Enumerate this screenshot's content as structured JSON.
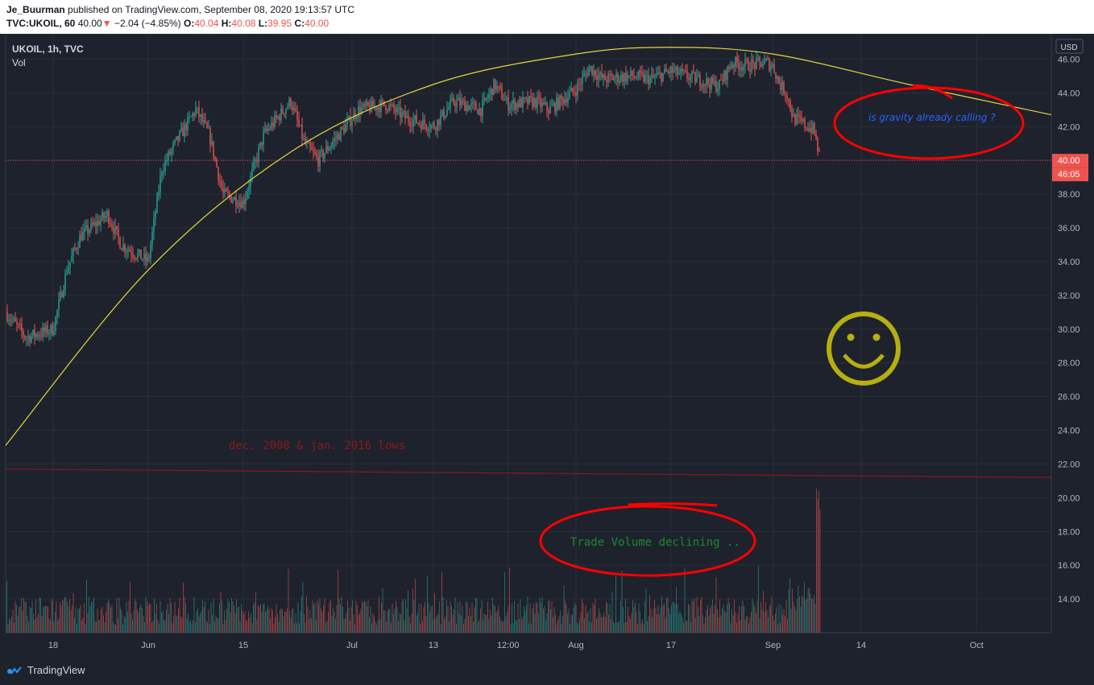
{
  "header": {
    "author": "Je_Buurman",
    "published": "published on TradingView.com, September 08, 2020 19:13:57 UTC",
    "symbol_line": "TVC:UKOIL, 60",
    "last": "40.00",
    "change": "−2.04 (−4.85%)",
    "o_label": "O:",
    "o": "40.04",
    "h_label": "H:",
    "h": "40.08",
    "l_label": "L:",
    "l": "39.95",
    "c_label": "C:",
    "c": "40.00"
  },
  "legend": {
    "symbol": "UKOIL, 1h, TVC",
    "volume": "Vol"
  },
  "annotations": {
    "gravity": "is gravity already calling ?",
    "lows": "dec. 2008 & jan. 2016 lows",
    "volume": "Trade Volume declining .."
  },
  "price_scale": {
    "currency": "USD",
    "last_price": "40.00",
    "countdown": "46:05"
  },
  "footer": {
    "brand": "TradingView"
  },
  "colors": {
    "background": "#1e222d",
    "grid": "#2a2e39",
    "up": "#26a69a",
    "down": "#ef5350",
    "arc": "#e5d640",
    "red_annotation": "#ff0000",
    "lows_line": "#8b1a1a",
    "smiley": "#b5b00f",
    "gravity_text": "#2962ff",
    "volume_text": "#1b8a2a"
  },
  "chart_data": {
    "type": "candlestick",
    "symbol": "UKOIL",
    "interval": "1h",
    "x_ticks": [
      "18",
      "Jun",
      "15",
      "Jul",
      "13",
      "12:00",
      "Aug",
      "17",
      "Sep",
      "14",
      "Oct"
    ],
    "y_ticks": [
      14,
      16,
      18,
      20,
      22,
      24,
      26,
      28,
      30,
      32,
      34,
      36,
      38,
      40,
      42,
      44,
      46
    ],
    "y_tick_labels": [
      "14.00",
      "16.00",
      "18.00",
      "20.00",
      "22.00",
      "24.00",
      "26.00",
      "28.00",
      "30.00",
      "32.00",
      "34.00",
      "36.00",
      "38.00",
      "40.00",
      "42.00",
      "44.00",
      "46.00"
    ],
    "ylim": [
      12.0,
      47.5
    ],
    "grid": true,
    "last_price": 40.0,
    "price_path": [
      {
        "date": "2020-05-11",
        "close": 31.0
      },
      {
        "date": "2020-05-14",
        "close": 29.5
      },
      {
        "date": "2020-05-18",
        "close": 30.0
      },
      {
        "date": "2020-05-20",
        "close": 33.5
      },
      {
        "date": "2020-05-22",
        "close": 35.5
      },
      {
        "date": "2020-05-26",
        "close": 36.8
      },
      {
        "date": "2020-05-28",
        "close": 35.0
      },
      {
        "date": "2020-06-01",
        "close": 34.0
      },
      {
        "date": "2020-06-03",
        "close": 39.5
      },
      {
        "date": "2020-06-05",
        "close": 41.0
      },
      {
        "date": "2020-06-08",
        "close": 43.0
      },
      {
        "date": "2020-06-10",
        "close": 41.5
      },
      {
        "date": "2020-06-12",
        "close": 38.0
      },
      {
        "date": "2020-06-15",
        "close": 37.5
      },
      {
        "date": "2020-06-18",
        "close": 41.5
      },
      {
        "date": "2020-06-22",
        "close": 43.5
      },
      {
        "date": "2020-06-24",
        "close": 41.0
      },
      {
        "date": "2020-06-26",
        "close": 40.0
      },
      {
        "date": "2020-06-29",
        "close": 41.5
      },
      {
        "date": "2020-07-02",
        "close": 43.0
      },
      {
        "date": "2020-07-06",
        "close": 43.3
      },
      {
        "date": "2020-07-09",
        "close": 42.5
      },
      {
        "date": "2020-07-13",
        "close": 42.0
      },
      {
        "date": "2020-07-16",
        "close": 43.5
      },
      {
        "date": "2020-07-20",
        "close": 43.0
      },
      {
        "date": "2020-07-22",
        "close": 44.5
      },
      {
        "date": "2020-07-24",
        "close": 43.3
      },
      {
        "date": "2020-07-28",
        "close": 43.5
      },
      {
        "date": "2020-07-30",
        "close": 43.0
      },
      {
        "date": "2020-08-03",
        "close": 44.2
      },
      {
        "date": "2020-08-05",
        "close": 45.5
      },
      {
        "date": "2020-08-07",
        "close": 44.8
      },
      {
        "date": "2020-08-11",
        "close": 45.0
      },
      {
        "date": "2020-08-14",
        "close": 44.8
      },
      {
        "date": "2020-08-17",
        "close": 45.3
      },
      {
        "date": "2020-08-20",
        "close": 44.9
      },
      {
        "date": "2020-08-24",
        "close": 44.4
      },
      {
        "date": "2020-08-26",
        "close": 45.8
      },
      {
        "date": "2020-08-28",
        "close": 45.6
      },
      {
        "date": "2020-08-31",
        "close": 45.8
      },
      {
        "date": "2020-09-01",
        "close": 45.6
      },
      {
        "date": "2020-09-02",
        "close": 44.5
      },
      {
        "date": "2020-09-03",
        "close": 44.0
      },
      {
        "date": "2020-09-04",
        "close": 42.5
      },
      {
        "date": "2020-09-07",
        "close": 41.8
      },
      {
        "date": "2020-09-08",
        "close": 40.0
      }
    ],
    "overlays": {
      "arc_points": [
        {
          "date": "2020-05-11",
          "price": 23.1
        },
        {
          "date": "2020-06-01",
          "price": 33.5
        },
        {
          "date": "2020-06-22",
          "price": 40.5
        },
        {
          "date": "2020-07-13",
          "price": 44.5
        },
        {
          "date": "2020-08-03",
          "price": 46.3
        },
        {
          "date": "2020-08-17",
          "price": 46.7
        },
        {
          "date": "2020-09-01",
          "price": 46.3
        },
        {
          "date": "2020-09-21",
          "price": 44.5
        },
        {
          "date": "2020-10-12",
          "price": 42.7
        }
      ],
      "lows_line": [
        {
          "date": "2020-05-11",
          "price": 21.7
        },
        {
          "date": "2020-10-12",
          "price": 21.2
        }
      ]
    },
    "volume_note": "volume histogram shown at bottom of pane; spike on 2020-09-08"
  }
}
